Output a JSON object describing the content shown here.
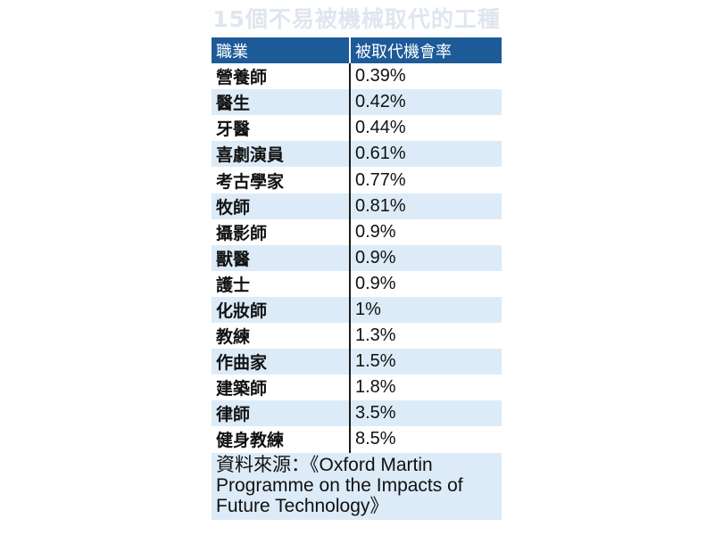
{
  "chart_data": {
    "type": "table",
    "title": "15個不易被機械取代的工種",
    "columns": [
      "職業",
      "被取代機會率"
    ],
    "rows": [
      {
        "job": "營養師",
        "rate": "0.39%"
      },
      {
        "job": "醫生",
        "rate": "0.42%"
      },
      {
        "job": "牙醫",
        "rate": "0.44%"
      },
      {
        "job": "喜劇演員",
        "rate": "0.61%"
      },
      {
        "job": "考古學家",
        "rate": "0.77%"
      },
      {
        "job": "牧師",
        "rate": "0.81%"
      },
      {
        "job": "攝影師",
        "rate": "0.9%"
      },
      {
        "job": "獸醫",
        "rate": "0.9%"
      },
      {
        "job": "護士",
        "rate": "0.9%"
      },
      {
        "job": "化妝師",
        "rate": "1%"
      },
      {
        "job": "教練",
        "rate": "1.3%"
      },
      {
        "job": "作曲家",
        "rate": "1.5%"
      },
      {
        "job": "建築師",
        "rate": "1.8%"
      },
      {
        "job": "律師",
        "rate": "3.5%"
      },
      {
        "job": "健身教練",
        "rate": "8.5%"
      }
    ],
    "source": "資料來源：《Oxford Martin Programme on the Impacts of Future Technology》"
  },
  "colors": {
    "header_bg": "#1c5a98",
    "stripe_bg": "#dcebf7",
    "title_color": "#dfe6ef"
  }
}
